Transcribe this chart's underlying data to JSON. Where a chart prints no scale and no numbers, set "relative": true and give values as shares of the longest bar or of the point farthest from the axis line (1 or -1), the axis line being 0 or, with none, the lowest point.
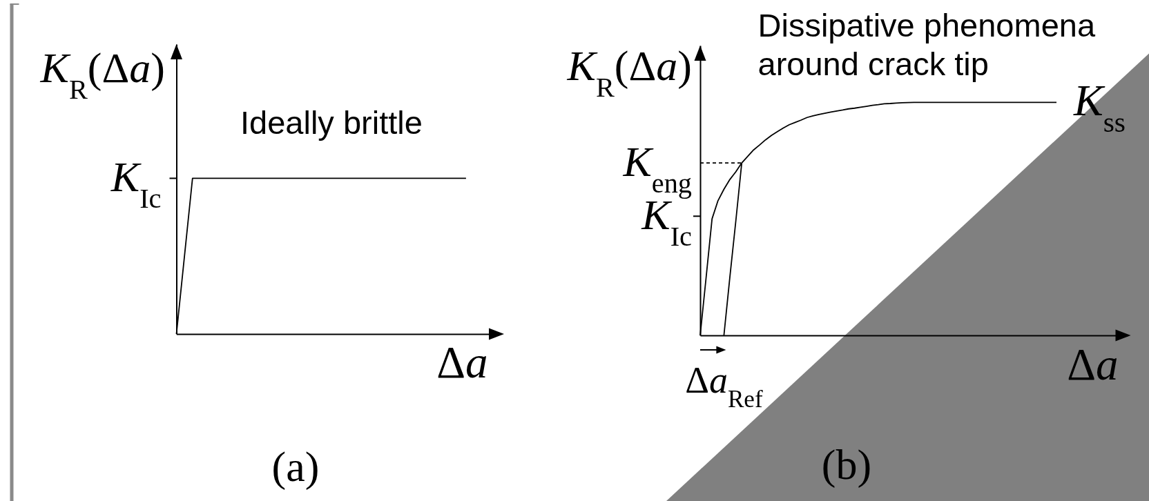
{
  "chart_data": [
    {
      "type": "line",
      "title": "(a)",
      "xlabel": "Δa",
      "ylabel": "K$_{R}$(Δa)",
      "annotations": [
        "Ideally brittle",
        "K$_{Ic}$"
      ],
      "relative": true,
      "categories": [
        null,
        null,
        null,
        null,
        null,
        null,
        null,
        null,
        null,
        null,
        null,
        null,
        null,
        null,
        null,
        null,
        null,
        null,
        null,
        null,
        null
      ],
      "series": [
        {
          "color": "#000000",
          "values": [
            0,
            1,
            1,
            1,
            1,
            1,
            1,
            1,
            1,
            1,
            1,
            1,
            1,
            1,
            1,
            1,
            1,
            1,
            1,
            null,
            null
          ]
        }
      ]
    },
    {
      "type": "line",
      "title": "(b)",
      "xlabel": "Δa",
      "ylabel": "K$_{R}$(Δa)",
      "annotations": [
        "Dissipative phenomena around crack tip",
        "Δa$_{Ref}$",
        "K$_{Ic}$",
        "K$_{eng}$"
      ],
      "relative": true,
      "categories": [
        null,
        null,
        null,
        null,
        null,
        null,
        null,
        null,
        null,
        null,
        null,
        null,
        null,
        null,
        null,
        null,
        null,
        null,
        null,
        null,
        null,
        null,
        null,
        null,
        null,
        null,
        null,
        null,
        null,
        null,
        null,
        null,
        null,
        null,
        null,
        null,
        null,
        null,
        null,
        null,
        null,
        null,
        null,
        null,
        null,
        null,
        null,
        null,
        null,
        null,
        null,
        null,
        null,
        null,
        null,
        null,
        null,
        null,
        null,
        null,
        null,
        null,
        null,
        null,
        null,
        null,
        null,
        null,
        null,
        null,
        null,
        null,
        null
      ],
      "series": [
        {
          "name": "K$_{ss}$",
          "color": "#000000",
          "values": [
            0,
            0.248,
            0.5,
            0.578,
            0.627,
            0.669,
            0.702,
            0.74,
            0.768,
            0.796,
            0.817,
            0.839,
            0.858,
            0.874,
            0.89,
            0.904,
            0.914,
            0.924,
            0.935,
            0.942,
            0.948,
            0.953,
            0.958,
            0.963,
            0.967,
            0.972,
            0.975,
            0.979,
            0.983,
            0.987,
            0.99,
            0.994,
            0.995,
            0.997,
            0.998,
            0.999,
            1,
            1,
            1,
            1,
            1,
            1,
            1,
            1,
            1,
            1,
            1,
            1,
            1,
            1,
            1,
            1,
            1,
            1,
            1,
            1,
            1,
            1,
            1,
            1,
            1,
            null,
            null,
            null,
            null,
            null,
            null,
            null,
            null,
            null,
            null,
            null,
            null
          ]
        },
        {
          "color": "#000000",
          "values": [
            null,
            null,
            null,
            null,
            0,
            0.25,
            0.49,
            0.74,
            null,
            null,
            null,
            null,
            null,
            null,
            null,
            null,
            null,
            null,
            null,
            null,
            null,
            null,
            null,
            null,
            null,
            null,
            null,
            null,
            null,
            null,
            null,
            null,
            null,
            null,
            null,
            null,
            null,
            null,
            null,
            null,
            null,
            null,
            null,
            null,
            null,
            null,
            null,
            null,
            null,
            null,
            null,
            null,
            null,
            null,
            null,
            null,
            null,
            null,
            null,
            null,
            null,
            null,
            null,
            null,
            null,
            null,
            null,
            null,
            null,
            null,
            null,
            null,
            null
          ]
        },
        {
          "color": "#000000",
          "line_style": "dashed",
          "values": [
            0.74,
            0.74,
            0.74,
            0.74,
            0.74,
            0.74,
            0.74,
            0.74,
            null,
            null,
            null,
            null,
            null,
            null,
            null,
            null,
            null,
            null,
            null,
            null,
            null,
            null,
            null,
            null,
            null,
            null,
            null,
            null,
            null,
            null,
            null,
            null,
            null,
            null,
            null,
            null,
            null,
            null,
            null,
            null,
            null,
            null,
            null,
            null,
            null,
            null,
            null,
            null,
            null,
            null,
            null,
            null,
            null,
            null,
            null,
            null,
            null,
            null,
            null,
            null,
            null,
            null,
            null,
            null,
            null,
            null,
            null,
            null,
            null,
            null,
            null,
            null,
            null
          ]
        }
      ]
    }
  ]
}
